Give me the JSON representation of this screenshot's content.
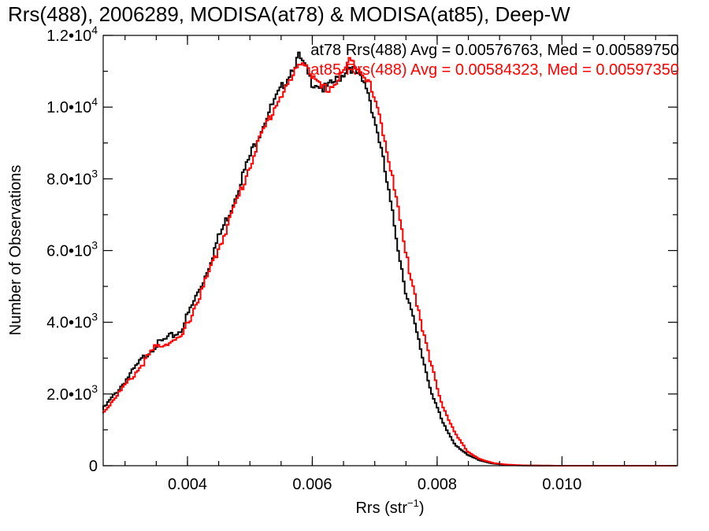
{
  "chart_data": {
    "type": "line",
    "style": "step",
    "title": "Rrs(488), 2006289, MODISA(at78) & MODISA(at85), Deep-W",
    "xlabel": "Rrs (str",
    "xlabel_sup": "−1",
    "xlabel_close": ")",
    "ylabel": "Number of Observations",
    "xlim": [
      0.00265,
      0.01185
    ],
    "ylim": [
      0,
      12000
    ],
    "x_ticks": [
      {
        "value": 0.004,
        "label": "0.004"
      },
      {
        "value": 0.006,
        "label": "0.006"
      },
      {
        "value": 0.008,
        "label": "0.008"
      },
      {
        "value": 0.01,
        "label": "0.010"
      }
    ],
    "y_ticks": [
      {
        "value": 0,
        "mant": "0",
        "exp": ""
      },
      {
        "value": 2000,
        "mant": "2.0•10",
        "exp": "3"
      },
      {
        "value": 4000,
        "mant": "4.0•10",
        "exp": "3"
      },
      {
        "value": 6000,
        "mant": "6.0•10",
        "exp": "3"
      },
      {
        "value": 8000,
        "mant": "8.0•10",
        "exp": "3"
      },
      {
        "value": 10000,
        "mant": "1.0•10",
        "exp": "4"
      },
      {
        "value": 12000,
        "mant": "1.2•10",
        "exp": "4"
      }
    ],
    "grid": false,
    "legend_position": "top-right",
    "series": [
      {
        "name": "at78 Rrs(488) Avg = 0.00576763, Med = 0.00589750",
        "color": "#000000",
        "x": [
          0.00265,
          0.0029,
          0.0031,
          0.0033,
          0.0035,
          0.0037,
          0.0039,
          0.0041,
          0.0043,
          0.0045,
          0.0047,
          0.0049,
          0.0051,
          0.0053,
          0.0055,
          0.0057,
          0.0058,
          0.0059,
          0.006,
          0.0061,
          0.0062,
          0.0063,
          0.0064,
          0.0065,
          0.0066,
          0.0067,
          0.0069,
          0.0071,
          0.0073,
          0.0075,
          0.0077,
          0.0079,
          0.0081,
          0.0083,
          0.0085,
          0.0087,
          0.0089,
          0.0091,
          0.0093,
          0.0095,
          0.0097,
          0.01,
          0.0105,
          0.011,
          0.01185
        ],
        "y": [
          1550,
          2100,
          2550,
          3000,
          3350,
          3550,
          3750,
          4500,
          5300,
          6300,
          7100,
          8100,
          9000,
          9800,
          10450,
          11100,
          11400,
          11100,
          10700,
          10650,
          10500,
          10600,
          10750,
          10900,
          11150,
          11000,
          10500,
          9000,
          7000,
          5000,
          3600,
          2200,
          1200,
          600,
          300,
          150,
          60,
          25,
          10,
          5,
          2,
          0,
          0,
          0,
          0
        ]
      },
      {
        "name": "at85 Rrs(488) Avg = 0.00584323, Med = 0.00597350",
        "color": "#ff0000",
        "x": [
          0.00265,
          0.0029,
          0.0031,
          0.0033,
          0.0035,
          0.0037,
          0.0039,
          0.0041,
          0.0043,
          0.0045,
          0.0047,
          0.0049,
          0.0051,
          0.0053,
          0.0055,
          0.0057,
          0.0058,
          0.0059,
          0.006,
          0.0061,
          0.0062,
          0.0063,
          0.0064,
          0.0065,
          0.0066,
          0.0067,
          0.0069,
          0.0071,
          0.0073,
          0.0075,
          0.0077,
          0.0079,
          0.0081,
          0.0083,
          0.0085,
          0.0087,
          0.0089,
          0.0091,
          0.0093,
          0.0095,
          0.0097,
          0.01,
          0.0105,
          0.011,
          0.01185
        ],
        "y": [
          1450,
          2000,
          2400,
          2850,
          3300,
          3450,
          3500,
          4300,
          5100,
          6000,
          6900,
          7800,
          8800,
          9600,
          10300,
          10800,
          11200,
          11300,
          10900,
          10600,
          10500,
          10550,
          10700,
          10950,
          11250,
          11250,
          10800,
          9700,
          8100,
          6000,
          4500,
          2900,
          1700,
          900,
          400,
          180,
          80,
          35,
          15,
          6,
          3,
          0,
          0,
          0,
          0
        ]
      }
    ]
  }
}
